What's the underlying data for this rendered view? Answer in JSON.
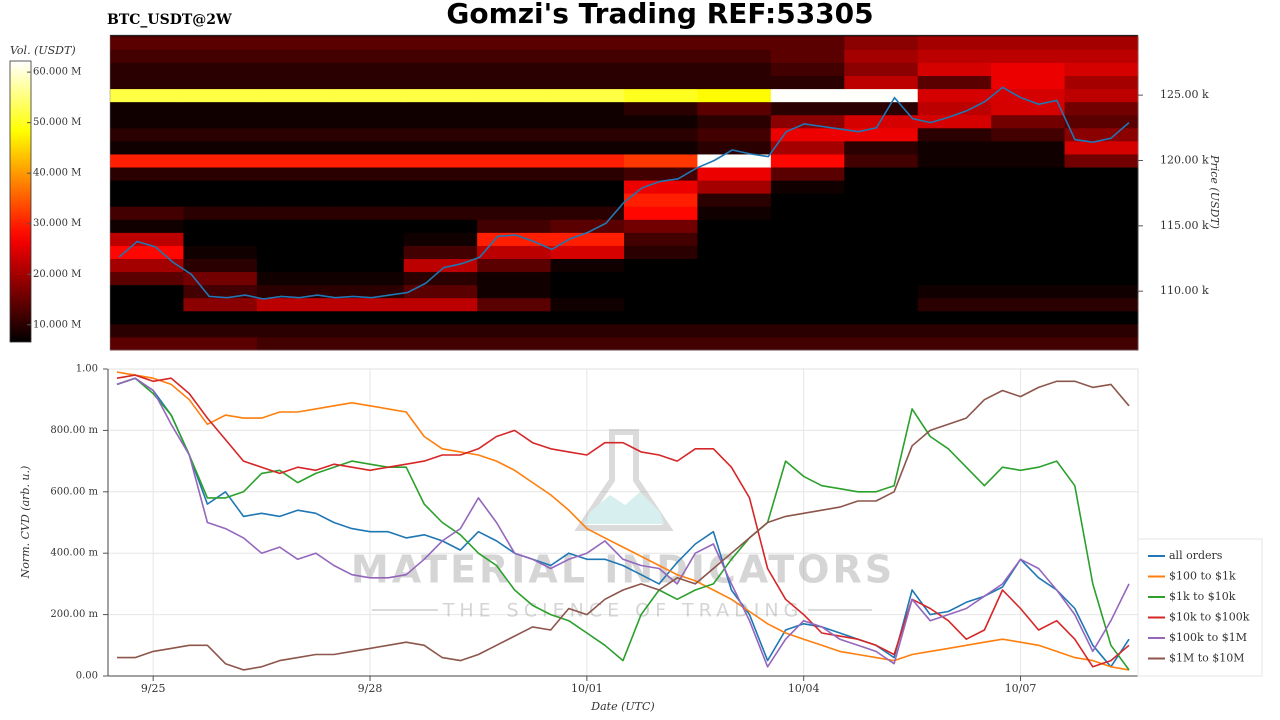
{
  "title": "Gomzi's Trading REF:53305",
  "watermark": {
    "brand": "MATERIAL INDICATORS",
    "tagline": "THE SCIENCE OF TRADING"
  },
  "chart_data": [
    {
      "type": "heatmap",
      "title": "BTC_USDT@2W",
      "ylabel": "Price (USDT)",
      "ylim": [
        105500,
        129600
      ],
      "yticks": [
        {
          "value": 110000,
          "label": "110.00 k"
        },
        {
          "value": 115000,
          "label": "115.00 k"
        },
        {
          "value": 120000,
          "label": "120.00 k"
        },
        {
          "value": 125000,
          "label": "125.00 k"
        }
      ],
      "colormap": "hot",
      "colorbar": {
        "label": "Vol. (USDT)",
        "lim": [
          6600000,
          62200000
        ],
        "ticks": [
          {
            "value": 10000000,
            "label": "10.000 M"
          },
          {
            "value": 20000000,
            "label": "20.000 M"
          },
          {
            "value": 30000000,
            "label": "30.000 M"
          },
          {
            "value": 40000000,
            "label": "40.000 M"
          },
          {
            "value": 50000000,
            "label": "50.000 M"
          },
          {
            "value": 60000000,
            "label": "60.000 M"
          }
        ]
      },
      "rows": [
        106000,
        107000,
        108000,
        109000,
        110000,
        111000,
        112000,
        113000,
        114000,
        115000,
        116000,
        117000,
        118000,
        119000,
        120000,
        121000,
        122000,
        123000,
        124000,
        125000,
        126000,
        127000,
        128000,
        129000
      ],
      "cells": [
        [
          14000000.0,
          14000000.0,
          12000000.0,
          12000000.0,
          12000000.0,
          12000000.0,
          12000000.0,
          12000000.0,
          12000000.0,
          12000000.0,
          12000000.0,
          12000000.0,
          12000000.0,
          12000000.0
        ],
        [
          10000000.0,
          10000000.0,
          10000000.0,
          10000000.0,
          10000000.0,
          10000000.0,
          10000000.0,
          10000000.0,
          10000000.0,
          10000000.0,
          10000000.0,
          10000000.0,
          10000000.0,
          10000000.0
        ],
        [
          6000000.0,
          6000000.0,
          6000000.0,
          6000000.0,
          6000000.0,
          6000000.0,
          6000000.0,
          6000000.0,
          6000000.0,
          6000000.0,
          6000000.0,
          6000000.0,
          6000000.0,
          6000000.0
        ],
        [
          6000000.0,
          18000000.0,
          22000000.0,
          22000000.0,
          22000000.0,
          14000000.0,
          8000000.0,
          6000000.0,
          6000000.0,
          6000000.0,
          6000000.0,
          10000000.0,
          10000000.0,
          10000000.0
        ],
        [
          6000000.0,
          12000000.0,
          10000000.0,
          10000000.0,
          14000000.0,
          8000000.0,
          6000000.0,
          6000000.0,
          6000000.0,
          6000000.0,
          6000000.0,
          8000000.0,
          8000000.0,
          8000000.0
        ],
        [
          14000000.0,
          16000000.0,
          8000000.0,
          8000000.0,
          10000000.0,
          8000000.0,
          6000000.0,
          6000000.0,
          6000000.0,
          6000000.0,
          6000000.0,
          6000000.0,
          6000000.0,
          6000000.0
        ],
        [
          20000000.0,
          10000000.0,
          6000000.0,
          6000000.0,
          22000000.0,
          14000000.0,
          8000000.0,
          6000000.0,
          6000000.0,
          6000000.0,
          6000000.0,
          6000000.0,
          6000000.0,
          6000000.0
        ],
        [
          28000000.0,
          8000000.0,
          6000000.0,
          6000000.0,
          12000000.0,
          22000000.0,
          24000000.0,
          10000000.0,
          6000000.0,
          6000000.0,
          6000000.0,
          6000000.0,
          6000000.0,
          6000000.0
        ],
        [
          22000000.0,
          6000000.0,
          6000000.0,
          6000000.0,
          8000000.0,
          30000000.0,
          30000000.0,
          12000000.0,
          6000000.0,
          6000000.0,
          6000000.0,
          6000000.0,
          6000000.0,
          6000000.0
        ],
        [
          8000000.0,
          6000000.0,
          6000000.0,
          6000000.0,
          6000000.0,
          12000000.0,
          14000000.0,
          16000000.0,
          6000000.0,
          6000000.0,
          6000000.0,
          6000000.0,
          6000000.0,
          6000000.0
        ],
        [
          12000000.0,
          10000000.0,
          10000000.0,
          10000000.0,
          10000000.0,
          10000000.0,
          10000000.0,
          28000000.0,
          8000000.0,
          6000000.0,
          6000000.0,
          6000000.0,
          6000000.0,
          6000000.0
        ],
        [
          6000000.0,
          6000000.0,
          6000000.0,
          6000000.0,
          6000000.0,
          6000000.0,
          6000000.0,
          30000000.0,
          10000000.0,
          6000000.0,
          6000000.0,
          6000000.0,
          6000000.0,
          6000000.0
        ],
        [
          6000000.0,
          6000000.0,
          6000000.0,
          6000000.0,
          6000000.0,
          6000000.0,
          6000000.0,
          26000000.0,
          20000000.0,
          8000000.0,
          6000000.0,
          6000000.0,
          6000000.0,
          6000000.0
        ],
        [
          10000000.0,
          10000000.0,
          10000000.0,
          10000000.0,
          10000000.0,
          10000000.0,
          10000000.0,
          12000000.0,
          26000000.0,
          14000000.0,
          6000000.0,
          6000000.0,
          6000000.0,
          6000000.0
        ],
        [
          30000000.0,
          30000000.0,
          30000000.0,
          30000000.0,
          30000000.0,
          30000000.0,
          30000000.0,
          32000000.0,
          62000000.0,
          28000000.0,
          12000000.0,
          8000000.0,
          8000000.0,
          16000000.0
        ],
        [
          8000000.0,
          8000000.0,
          8000000.0,
          8000000.0,
          8000000.0,
          8000000.0,
          8000000.0,
          8000000.0,
          10000000.0,
          20000000.0,
          10000000.0,
          8000000.0,
          8000000.0,
          24000000.0
        ],
        [
          10000000.0,
          10000000.0,
          10000000.0,
          10000000.0,
          10000000.0,
          10000000.0,
          10000000.0,
          10000000.0,
          12000000.0,
          26000000.0,
          26000000.0,
          10000000.0,
          12000000.0,
          18000000.0
        ],
        [
          8000000.0,
          8000000.0,
          8000000.0,
          8000000.0,
          8000000.0,
          8000000.0,
          8000000.0,
          8000000.0,
          10000000.0,
          18000000.0,
          24000000.0,
          24000000.0,
          16000000.0,
          14000000.0
        ],
        [
          8000000.0,
          8000000.0,
          8000000.0,
          8000000.0,
          8000000.0,
          8000000.0,
          8000000.0,
          10000000.0,
          14000000.0,
          10000000.0,
          10000000.0,
          22000000.0,
          24000000.0,
          16000000.0
        ],
        [
          52000000.0,
          52000000.0,
          52000000.0,
          52000000.0,
          52000000.0,
          52000000.0,
          52000000.0,
          50000000.0,
          48000000.0,
          62000000.0,
          62000000.0,
          24000000.0,
          24000000.0,
          22000000.0
        ],
        [
          10000000.0,
          10000000.0,
          10000000.0,
          10000000.0,
          10000000.0,
          10000000.0,
          10000000.0,
          10000000.0,
          10000000.0,
          10000000.0,
          22000000.0,
          14000000.0,
          26000000.0,
          20000000.0
        ],
        [
          10000000.0,
          10000000.0,
          10000000.0,
          10000000.0,
          10000000.0,
          10000000.0,
          10000000.0,
          10000000.0,
          10000000.0,
          12000000.0,
          18000000.0,
          24000000.0,
          26000000.0,
          24000000.0
        ],
        [
          12000000.0,
          12000000.0,
          12000000.0,
          12000000.0,
          12000000.0,
          12000000.0,
          12000000.0,
          12000000.0,
          12000000.0,
          14000000.0,
          20000000.0,
          22000000.0,
          22000000.0,
          22000000.0
        ],
        [
          14000000.0,
          14000000.0,
          14000000.0,
          14000000.0,
          14000000.0,
          14000000.0,
          14000000.0,
          14000000.0,
          14000000.0,
          14000000.0,
          18000000.0,
          20000000.0,
          20000000.0,
          20000000.0
        ]
      ],
      "line": {
        "color": "#1f77b4",
        "values": [
          112600,
          113800,
          113400,
          112200,
          111300,
          109600,
          109500,
          109700,
          109400,
          109600,
          109500,
          109700,
          109500,
          109600,
          109500,
          109700,
          109900,
          110600,
          111800,
          112100,
          112600,
          114200,
          114300,
          113800,
          113200,
          114000,
          114500,
          115200,
          116800,
          117900,
          118400,
          118600,
          119400,
          120000,
          120800,
          120500,
          120300,
          122200,
          122800,
          122600,
          122400,
          122200,
          122500,
          124800,
          123200,
          122900,
          123300,
          123800,
          124500,
          125600,
          124800,
          124300,
          124600,
          121600,
          121400,
          121700,
          122900
        ]
      }
    },
    {
      "type": "line",
      "xlabel": "Date (UTC)",
      "ylabel": "Norm. CVD (arb. u.)",
      "categories": [
        null,
        null,
        "9/25",
        null,
        null,
        null,
        null,
        null,
        null,
        null,
        null,
        null,
        null,
        null,
        "9/28",
        null,
        null,
        null,
        null,
        null,
        null,
        null,
        null,
        null,
        null,
        null,
        "10/01",
        null,
        null,
        null,
        null,
        null,
        null,
        null,
        null,
        null,
        null,
        null,
        "10/04",
        null,
        null,
        null,
        null,
        null,
        null,
        null,
        null,
        null,
        null,
        null,
        "10/07",
        null,
        null,
        null,
        null,
        null,
        null
      ],
      "ylim": [
        0,
        1
      ],
      "yticks": [
        {
          "value": 0,
          "label": "0.00"
        },
        {
          "value": 0.2,
          "label": "200.00 m"
        },
        {
          "value": 0.4,
          "label": "400.00 m"
        },
        {
          "value": 0.6,
          "label": "600.00 m"
        },
        {
          "value": 0.8,
          "label": "800.00 m"
        },
        {
          "value": 1,
          "label": "1.00"
        }
      ],
      "grid": true,
      "legend": "lower right",
      "series": [
        {
          "name": "all orders",
          "color": "#1f77b4",
          "values": [
            0.95,
            0.97,
            0.93,
            0.85,
            0.72,
            0.56,
            0.6,
            0.52,
            0.53,
            0.52,
            0.54,
            0.53,
            0.5,
            0.48,
            0.47,
            0.47,
            0.45,
            0.46,
            0.44,
            0.41,
            0.47,
            0.44,
            0.4,
            0.38,
            0.36,
            0.4,
            0.38,
            0.38,
            0.36,
            0.33,
            0.3,
            0.37,
            0.43,
            0.47,
            0.28,
            0.2,
            0.05,
            0.15,
            0.17,
            0.16,
            0.14,
            0.12,
            0.1,
            0.06,
            0.28,
            0.2,
            0.21,
            0.24,
            0.26,
            0.29,
            0.38,
            0.32,
            0.28,
            0.22,
            0.1,
            0.03,
            0.12
          ]
        },
        {
          "name": "$100 to $1k",
          "color": "#ff7f0e",
          "values": [
            0.99,
            0.98,
            0.97,
            0.95,
            0.9,
            0.82,
            0.85,
            0.84,
            0.84,
            0.86,
            0.86,
            0.87,
            0.88,
            0.89,
            0.88,
            0.87,
            0.86,
            0.78,
            0.74,
            0.73,
            0.72,
            0.7,
            0.67,
            0.63,
            0.59,
            0.54,
            0.48,
            0.45,
            0.42,
            0.39,
            0.36,
            0.33,
            0.31,
            0.28,
            0.25,
            0.21,
            0.17,
            0.14,
            0.12,
            0.1,
            0.08,
            0.07,
            0.06,
            0.05,
            0.07,
            0.08,
            0.09,
            0.1,
            0.11,
            0.12,
            0.11,
            0.1,
            0.08,
            0.06,
            0.05,
            0.03,
            0.02
          ]
        },
        {
          "name": "$1k to $10k",
          "color": "#2ca02c",
          "values": [
            0.95,
            0.97,
            0.92,
            0.85,
            0.72,
            0.58,
            0.58,
            0.6,
            0.66,
            0.67,
            0.63,
            0.66,
            0.68,
            0.7,
            0.69,
            0.68,
            0.68,
            0.56,
            0.5,
            0.46,
            0.4,
            0.36,
            0.28,
            0.23,
            0.2,
            0.18,
            0.14,
            0.1,
            0.05,
            0.2,
            0.28,
            0.25,
            0.28,
            0.3,
            0.38,
            0.45,
            0.5,
            0.7,
            0.65,
            0.62,
            0.61,
            0.6,
            0.6,
            0.62,
            0.87,
            0.78,
            0.74,
            0.68,
            0.62,
            0.68,
            0.67,
            0.68,
            0.7,
            0.62,
            0.3,
            0.1,
            0.02
          ]
        },
        {
          "name": "$10k to $100k",
          "color": "#d62728",
          "values": [
            0.97,
            0.98,
            0.96,
            0.97,
            0.92,
            0.84,
            0.77,
            0.7,
            0.68,
            0.66,
            0.68,
            0.67,
            0.69,
            0.68,
            0.67,
            0.68,
            0.69,
            0.7,
            0.72,
            0.72,
            0.74,
            0.78,
            0.8,
            0.76,
            0.74,
            0.73,
            0.72,
            0.76,
            0.76,
            0.73,
            0.72,
            0.7,
            0.74,
            0.74,
            0.68,
            0.58,
            0.35,
            0.25,
            0.2,
            0.14,
            0.13,
            0.12,
            0.1,
            0.07,
            0.25,
            0.22,
            0.18,
            0.12,
            0.15,
            0.28,
            0.22,
            0.15,
            0.18,
            0.12,
            0.03,
            0.05,
            0.1
          ]
        },
        {
          "name": "$100k to $1M",
          "color": "#9467bd",
          "values": [
            0.95,
            0.97,
            0.93,
            0.82,
            0.72,
            0.5,
            0.48,
            0.45,
            0.4,
            0.42,
            0.38,
            0.4,
            0.36,
            0.33,
            0.32,
            0.32,
            0.33,
            0.38,
            0.44,
            0.48,
            0.58,
            0.5,
            0.4,
            0.38,
            0.35,
            0.38,
            0.4,
            0.44,
            0.38,
            0.36,
            0.35,
            0.3,
            0.4,
            0.43,
            0.3,
            0.18,
            0.03,
            0.12,
            0.18,
            0.16,
            0.12,
            0.1,
            0.08,
            0.04,
            0.25,
            0.18,
            0.2,
            0.22,
            0.26,
            0.3,
            0.38,
            0.35,
            0.28,
            0.2,
            0.08,
            0.18,
            0.3
          ]
        },
        {
          "name": "$1M to $10M",
          "color": "#8c564b",
          "values": [
            0.06,
            0.06,
            0.08,
            0.09,
            0.1,
            0.1,
            0.04,
            0.02,
            0.03,
            0.05,
            0.06,
            0.07,
            0.07,
            0.08,
            0.09,
            0.1,
            0.11,
            0.1,
            0.06,
            0.05,
            0.07,
            0.1,
            0.13,
            0.16,
            0.15,
            0.22,
            0.2,
            0.25,
            0.28,
            0.3,
            0.28,
            0.32,
            0.3,
            0.35,
            0.4,
            0.45,
            0.5,
            0.52,
            0.53,
            0.54,
            0.55,
            0.57,
            0.57,
            0.6,
            0.75,
            0.8,
            0.82,
            0.84,
            0.9,
            0.93,
            0.91,
            0.94,
            0.96,
            0.96,
            0.94,
            0.95,
            0.88
          ]
        }
      ]
    }
  ]
}
